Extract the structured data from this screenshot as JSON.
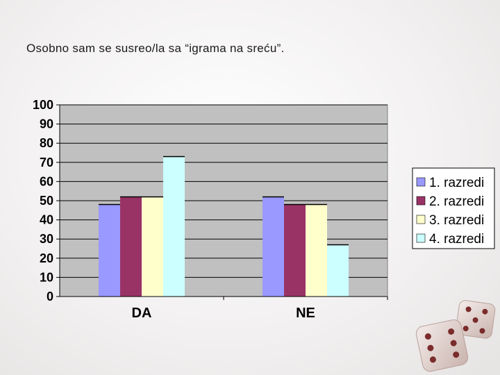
{
  "title": "Osobno sam se susreo/la sa “igrama na sreću”.",
  "colors": {
    "plot_bg": "#c0c0c0",
    "grid": "#000000",
    "series": [
      "#9999ff",
      "#993366",
      "#ffffcc",
      "#ccffff"
    ]
  },
  "chart_data": {
    "type": "bar",
    "categories": [
      "DA",
      "NE"
    ],
    "series": [
      {
        "name": "1. razredi",
        "values": [
          48,
          52
        ]
      },
      {
        "name": "2. razredi",
        "values": [
          52,
          48
        ]
      },
      {
        "name": "3. razredi",
        "values": [
          52,
          48
        ]
      },
      {
        "name": "4. razredi",
        "values": [
          73,
          27
        ]
      }
    ],
    "ylim": [
      0,
      100
    ],
    "yticks": [
      "0",
      "10",
      "20",
      "30",
      "40",
      "50",
      "60",
      "70",
      "80",
      "90",
      "100"
    ],
    "grid": true,
    "legend": "right"
  }
}
